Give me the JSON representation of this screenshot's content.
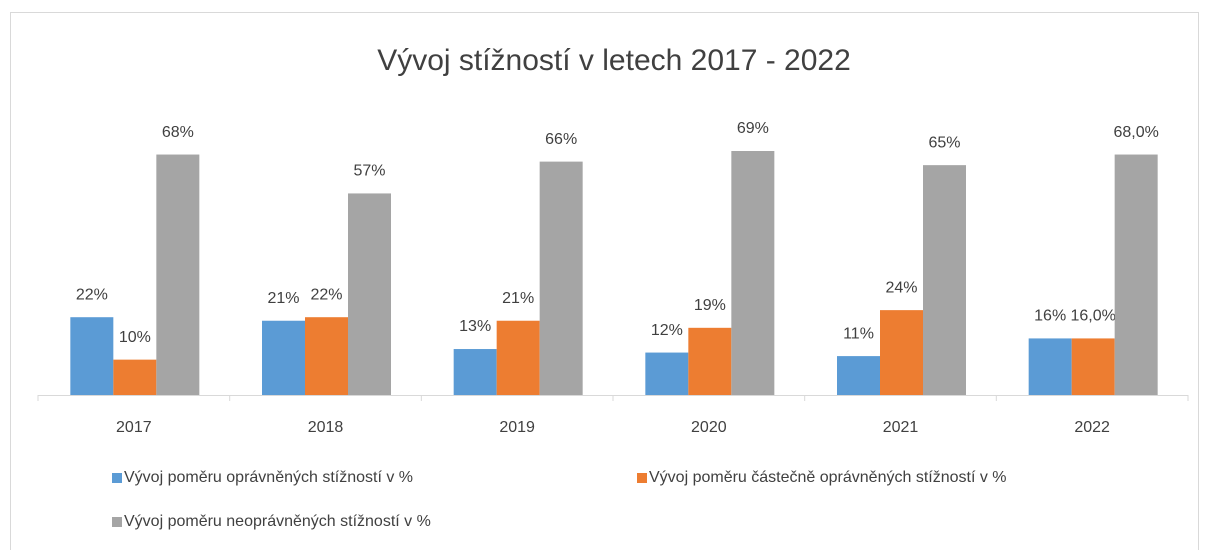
{
  "chart_data": {
    "type": "bar",
    "title": "Vývoj stížností v letech 2017 - 2022",
    "categories": [
      "2017",
      "2018",
      "2019",
      "2020",
      "2021",
      "2022"
    ],
    "series": [
      {
        "name": "Vývoj poměru oprávněných stížností v %",
        "color": "#5b9bd5",
        "values": [
          22,
          21,
          13,
          12,
          11,
          16
        ],
        "value_labels": [
          "22%",
          "21%",
          "13%",
          "12%",
          "11%",
          "16%"
        ]
      },
      {
        "name": "Vývoj poměru částečně oprávněných stížností v %",
        "color": "#ed7d31",
        "values": [
          10,
          22,
          21,
          19,
          24,
          16
        ],
        "value_labels": [
          "10%",
          "22%",
          "21%",
          "19%",
          "24%",
          "16,0%"
        ]
      },
      {
        "name": "Vývoj poměru neoprávněných stížností v %",
        "color": "#a5a5a5",
        "values": [
          68,
          57,
          66,
          69,
          65,
          68
        ],
        "value_labels": [
          "68%",
          "57%",
          "66%",
          "69%",
          "65%",
          "68,0%"
        ]
      }
    ]
  }
}
